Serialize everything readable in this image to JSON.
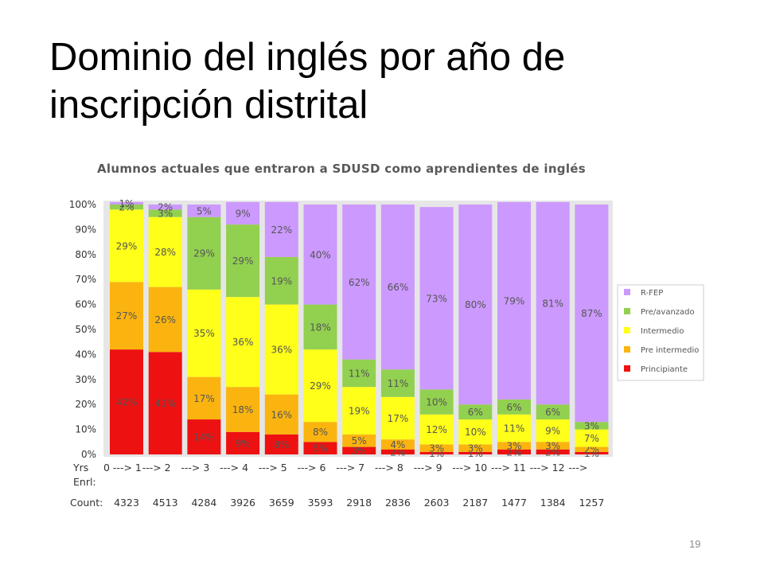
{
  "slide": {
    "title": "Dominio del inglés por año de inscripción distrital",
    "page_number": "19"
  },
  "chart_data": {
    "type": "bar",
    "stacked": true,
    "title": "Alumnos actuales que entraron a SDUSD como aprendientes de inglés",
    "ylim": [
      0,
      100
    ],
    "y_ticks": [
      "0%",
      "10%",
      "20%",
      "30%",
      "40%",
      "50%",
      "60%",
      "70%",
      "80%",
      "90%",
      "100%"
    ],
    "x_row_label": "Yrs",
    "x_row_label2": "Enrl:",
    "categories": [
      "0 ---> 1",
      "---> 2",
      "---> 3",
      "---> 4",
      "---> 5",
      "---> 6",
      "---> 7",
      "---> 8",
      "---> 9",
      "---> 10",
      "---> 11",
      "---> 12",
      "--->"
    ],
    "count_label": "Count:",
    "counts": [
      "4323",
      "4513",
      "4284",
      "3926",
      "3659",
      "3593",
      "2918",
      "2836",
      "2603",
      "2187",
      "1477",
      "1384",
      "1257"
    ],
    "series": [
      {
        "name": "Principiante",
        "color": "#ee1111",
        "values": [
          42,
          41,
          14,
          9,
          8,
          5,
          3,
          2,
          1,
          1,
          2,
          2,
          1
        ]
      },
      {
        "name": "Pre intermedio",
        "color": "#fbb40f",
        "values": [
          27,
          26,
          17,
          18,
          16,
          8,
          5,
          4,
          3,
          3,
          3,
          3,
          2
        ]
      },
      {
        "name": "Intermedio",
        "color": "#ffff19",
        "values": [
          29,
          28,
          35,
          36,
          36,
          29,
          19,
          17,
          12,
          10,
          11,
          9,
          7
        ]
      },
      {
        "name": "Pre/avanzado",
        "color": "#92d050",
        "values": [
          2,
          3,
          29,
          29,
          19,
          18,
          11,
          11,
          10,
          6,
          6,
          6,
          3
        ]
      },
      {
        "name": "R-FEP",
        "color": "#cc99ff",
        "values": [
          1,
          2,
          5,
          9,
          22,
          40,
          62,
          66,
          73,
          80,
          79,
          81,
          87
        ]
      }
    ],
    "legend_position": "right",
    "grid": false
  }
}
